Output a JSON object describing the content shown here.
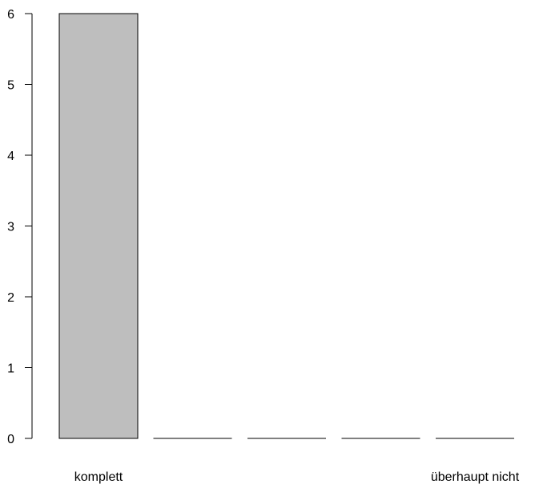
{
  "chart_data": {
    "type": "bar",
    "categories": [
      "komplett",
      "",
      "",
      "",
      "überhaupt nicht"
    ],
    "values": [
      6,
      0,
      0,
      0,
      0
    ],
    "ylim": [
      0,
      6
    ],
    "yticks": [
      0,
      1,
      2,
      3,
      4,
      5,
      6
    ],
    "title": "",
    "xlabel": "",
    "ylabel": "",
    "grid": false,
    "bar_color": "#bebebe",
    "outline_color": "#000000"
  }
}
